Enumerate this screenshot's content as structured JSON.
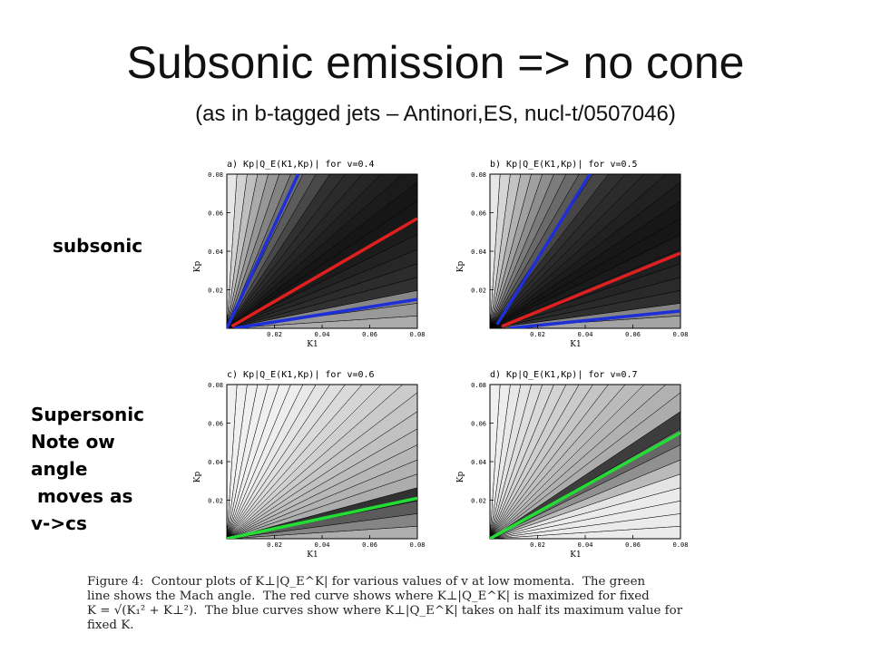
{
  "slide": {
    "title": "Subsonic emission => no cone",
    "subtitle": "(as in b-tagged jets – Antinori,ES, nucl-t/0507046)"
  },
  "labels": {
    "subsonic": "subsonic",
    "supersonic_lines": [
      "Supersonic",
      "Note ow",
      "angle",
      " moves as",
      "v->cs"
    ]
  },
  "caption": {
    "lines": [
      "Figure 4:  Contour plots of K⊥|Q_E^K| for various values of v at low momenta.  The green",
      "line shows the Mach angle.  The red curve shows where K⊥|Q_E^K| is maximized for fixed",
      "K = √(K₁² + K⊥²).  The blue curves show where K⊥|Q_E^K| takes on half its maximum value for",
      "fixed K."
    ]
  },
  "colors": {
    "red": "#e0201e",
    "blue": "#1f2fd6",
    "green": "#22dd33"
  },
  "chart_data": [
    {
      "type": "heatmap",
      "title": "a) Kp|Q_E(K1,Kp)| for v=0.4",
      "xlabel": "K1",
      "ylabel": "Kp",
      "xlim": [
        0,
        0.08
      ],
      "ylim": [
        0,
        0.08
      ],
      "xticks": [
        0.02,
        0.04,
        0.06,
        0.08
      ],
      "yticks": [
        0.02,
        0.04,
        0.06,
        0.08
      ],
      "curves": [
        {
          "color": "blue",
          "points": [
            [
              0,
              0
            ],
            [
              0.03,
              0.08
            ]
          ]
        },
        {
          "color": "red",
          "points": [
            [
              0.002,
              0.001
            ],
            [
              0.08,
              0.057
            ]
          ]
        },
        {
          "color": "blue",
          "points": [
            [
              0.003,
              0.0
            ],
            [
              0.08,
              0.015
            ]
          ]
        }
      ]
    },
    {
      "type": "heatmap",
      "title": "b) Kp|Q_E(K1,Kp)| for v=0.5",
      "xlabel": "K1",
      "ylabel": "Kp",
      "xlim": [
        0,
        0.08
      ],
      "ylim": [
        0,
        0.08
      ],
      "xticks": [
        0.02,
        0.04,
        0.06,
        0.08
      ],
      "yticks": [
        0.02,
        0.04,
        0.06,
        0.08
      ],
      "curves": [
        {
          "color": "blue",
          "points": [
            [
              0.003,
              0.002
            ],
            [
              0.042,
              0.08
            ]
          ]
        },
        {
          "color": "red",
          "points": [
            [
              0.005,
              0.001
            ],
            [
              0.08,
              0.039
            ]
          ]
        },
        {
          "color": "blue",
          "points": [
            [
              0.008,
              0.0
            ],
            [
              0.08,
              0.009
            ]
          ]
        }
      ]
    },
    {
      "type": "heatmap",
      "title": "c) Kp|Q_E(K1,Kp)| for v=0.6",
      "xlabel": "K1",
      "ylabel": "Kp",
      "xlim": [
        0,
        0.08
      ],
      "ylim": [
        0,
        0.08
      ],
      "xticks": [
        0.02,
        0.04,
        0.06,
        0.08
      ],
      "yticks": [
        0.02,
        0.04,
        0.06,
        0.08
      ],
      "curves": [
        {
          "color": "green",
          "points": [
            [
              0,
              0
            ],
            [
              0.08,
              0.021
            ]
          ]
        }
      ]
    },
    {
      "type": "heatmap",
      "title": "d) Kp|Q_E(K1,Kp)| for v=0.7",
      "xlabel": "K1",
      "ylabel": "Kp",
      "xlim": [
        0,
        0.08
      ],
      "ylim": [
        0,
        0.08
      ],
      "xticks": [
        0.02,
        0.04,
        0.06,
        0.08
      ],
      "yticks": [
        0.02,
        0.04,
        0.06,
        0.08
      ],
      "curves": [
        {
          "color": "green",
          "points": [
            [
              0,
              0
            ],
            [
              0.08,
              0.055
            ]
          ]
        }
      ]
    }
  ]
}
